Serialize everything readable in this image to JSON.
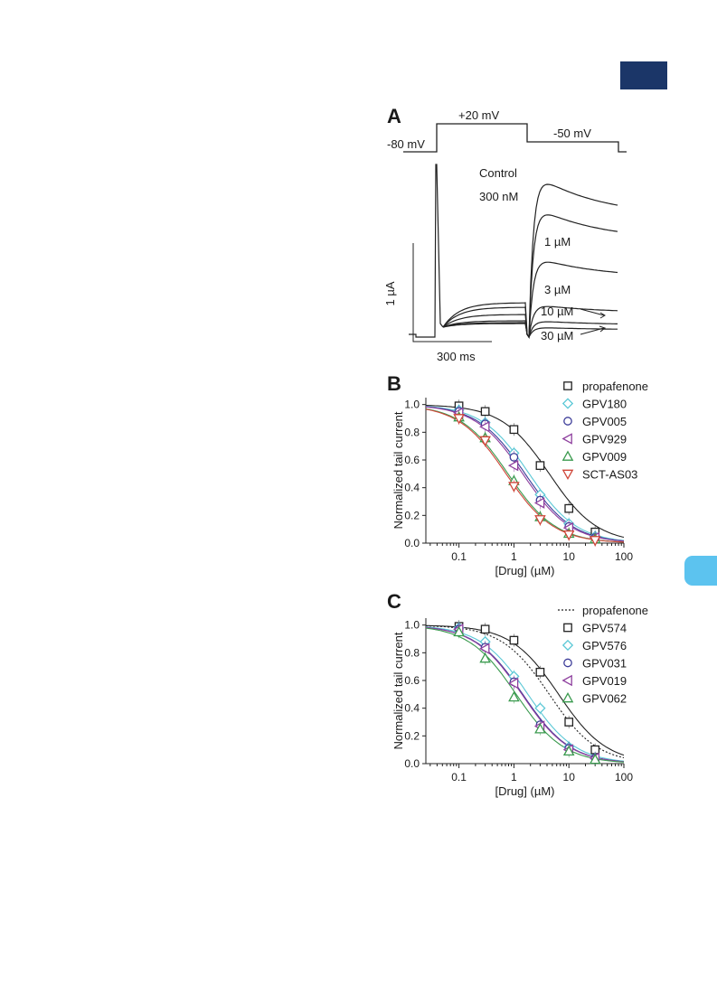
{
  "decor": {
    "badge_color": "#1b3668",
    "tab_color": "#5cc3ef"
  },
  "panelA": {
    "letter": "A",
    "protocol_labels": {
      "hold": "-80 mV",
      "step": "+20 mV",
      "tail": "-50 mV"
    },
    "trace_labels": [
      "Control",
      "300 nM",
      "1 µM",
      "3 µM",
      "10 µM",
      "30 µM"
    ],
    "scale_current": "1 µA",
    "scale_time": "300 ms",
    "tail_peaks_rel": [
      1.0,
      0.8,
      0.49,
      0.2,
      0.1,
      0.06
    ]
  },
  "chart_data": [
    {
      "type": "scatter",
      "panel": "B",
      "xlabel": "[Drug] (µM)",
      "ylabel": "Normalized tail current",
      "xscale": "log",
      "xlim": [
        0.025,
        100
      ],
      "ylim": [
        0,
        1.05
      ],
      "xticks": [
        "0.1",
        "1",
        "10",
        "100"
      ],
      "yticks": [
        "0.0",
        "0.2",
        "0.4",
        "0.6",
        "0.8",
        "1.0"
      ],
      "legend_position": "top-right",
      "x": [
        0.1,
        0.3,
        1,
        3,
        10,
        30
      ],
      "series": [
        {
          "name": "propafenone",
          "marker": "square",
          "color": "#222222",
          "values": [
            0.99,
            0.95,
            0.82,
            0.56,
            0.25,
            0.08
          ],
          "fit_ic50": 4.4,
          "fit_n": 1.0
        },
        {
          "name": "GPV180",
          "marker": "diamond",
          "color": "#5bc8d6",
          "values": [
            0.96,
            0.87,
            0.65,
            0.35,
            0.14,
            0.05
          ],
          "fit_ic50": 1.9,
          "fit_n": 1.0
        },
        {
          "name": "GPV005",
          "marker": "circle",
          "color": "#3d3d99",
          "values": [
            0.95,
            0.86,
            0.62,
            0.31,
            0.12,
            0.04
          ],
          "fit_ic50": 1.6,
          "fit_n": 1.0
        },
        {
          "name": "GPV929",
          "marker": "tri-left",
          "color": "#8e3f9e",
          "values": [
            0.94,
            0.84,
            0.56,
            0.29,
            0.11,
            0.04
          ],
          "fit_ic50": 1.45,
          "fit_n": 1.0
        },
        {
          "name": "GPV009",
          "marker": "tri-up",
          "color": "#3a9a4e",
          "values": [
            0.91,
            0.76,
            0.45,
            0.19,
            0.07,
            0.03
          ],
          "fit_ic50": 0.78,
          "fit_n": 1.0
        },
        {
          "name": "SCT-AS03",
          "marker": "tri-down",
          "color": "#cf4538",
          "values": [
            0.9,
            0.74,
            0.41,
            0.17,
            0.06,
            0.02
          ],
          "fit_ic50": 0.72,
          "fit_n": 1.0
        }
      ]
    },
    {
      "type": "scatter",
      "panel": "C",
      "xlabel": "[Drug] (µM)",
      "ylabel": "Normalized tail current",
      "xscale": "log",
      "xlim": [
        0.025,
        100
      ],
      "ylim": [
        0,
        1.05
      ],
      "xticks": [
        "0.1",
        "1",
        "10",
        "100"
      ],
      "yticks": [
        "0.0",
        "0.2",
        "0.4",
        "0.6",
        "0.8",
        "1.0"
      ],
      "legend_position": "top-right",
      "x": [
        0.1,
        0.3,
        1,
        3,
        10,
        30
      ],
      "series": [
        {
          "name": "propafenone",
          "marker": "none",
          "line": "dotted",
          "color": "#222222",
          "values": [],
          "fit_ic50": 4.4,
          "fit_n": 1.0
        },
        {
          "name": "GPV574",
          "marker": "square",
          "color": "#222222",
          "values": [
            0.99,
            0.97,
            0.89,
            0.66,
            0.3,
            0.1
          ],
          "fit_ic50": 6.5,
          "fit_n": 1.0
        },
        {
          "name": "GPV576",
          "marker": "diamond",
          "color": "#5bc8d6",
          "values": [
            0.98,
            0.88,
            0.63,
            0.4,
            0.12,
            0.04
          ],
          "fit_ic50": 1.8,
          "fit_n": 1.0
        },
        {
          "name": "GPV031",
          "marker": "circle",
          "color": "#3d3d99",
          "values": [
            0.97,
            0.84,
            0.59,
            0.28,
            0.11,
            0.04
          ],
          "fit_ic50": 1.45,
          "fit_n": 1.0
        },
        {
          "name": "GPV019",
          "marker": "tri-left",
          "color": "#8e3f9e",
          "values": [
            0.97,
            0.83,
            0.58,
            0.27,
            0.1,
            0.04
          ],
          "fit_ic50": 1.4,
          "fit_n": 1.0
        },
        {
          "name": "GPV062",
          "marker": "tri-up",
          "color": "#3a9a4e",
          "values": [
            0.95,
            0.76,
            0.48,
            0.25,
            0.09,
            0.03
          ],
          "fit_ic50": 1.1,
          "fit_n": 1.0
        }
      ]
    }
  ]
}
